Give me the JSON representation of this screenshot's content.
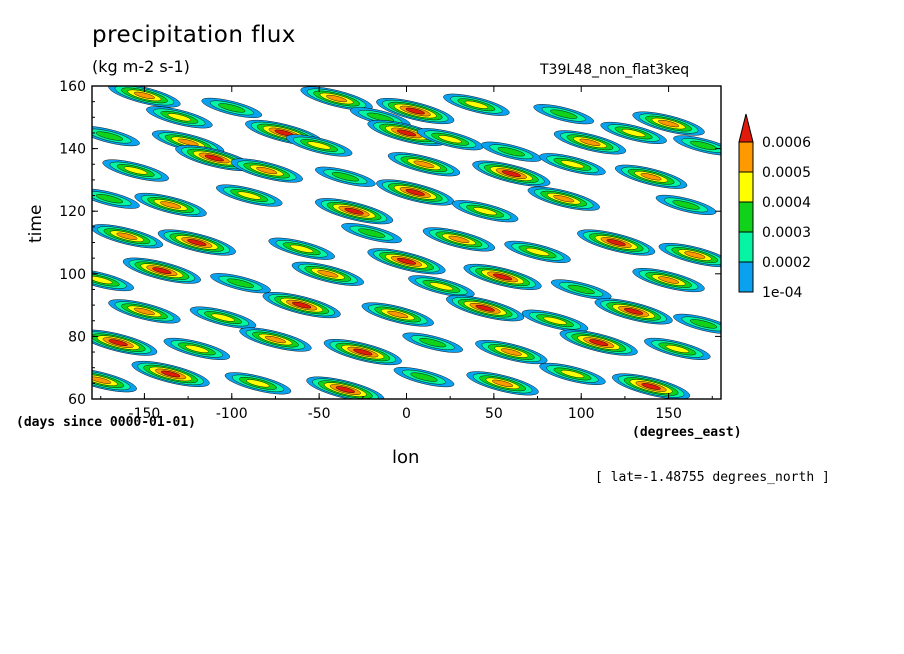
{
  "chart_data": {
    "type": "heatmap",
    "title": "precipitation flux",
    "units": "(kg m-2 s-1)",
    "run_name": "T39L48_non_flat3keq",
    "xlabel": "lon",
    "x_units": "(degrees_east)",
    "ylabel": "time",
    "y_units": "(days since 0000-01-01)",
    "annotation": "[ lat=-1.48755 degrees_north ]",
    "xlim": [
      -180,
      180
    ],
    "ylim": [
      60,
      160
    ],
    "x_ticks": [
      "-150",
      "-100",
      "-50",
      "0",
      "50",
      "100",
      "150"
    ],
    "y_ticks": [
      "60",
      "80",
      "100",
      "120",
      "140",
      "160"
    ],
    "colorbar": {
      "levels": [
        "1e-04",
        "0.0002",
        "0.0003",
        "0.0004",
        "0.0005",
        "0.0006"
      ],
      "colors": [
        "#0aa2ee",
        "#05f5a4",
        "#10d21b",
        "#ffff00",
        "#ff9900",
        "#e11b0b"
      ]
    },
    "blobs": [
      {
        "lon": -150,
        "time": 157,
        "level": 5
      },
      {
        "lon": -130,
        "time": 150,
        "level": 4
      },
      {
        "lon": -100,
        "time": 153,
        "level": 3
      },
      {
        "lon": -40,
        "time": 156,
        "level": 5
      },
      {
        "lon": -15,
        "time": 150,
        "level": 3
      },
      {
        "lon": 5,
        "time": 152,
        "level": 6
      },
      {
        "lon": 40,
        "time": 154,
        "level": 4
      },
      {
        "lon": 90,
        "time": 151,
        "level": 3
      },
      {
        "lon": 150,
        "time": 148,
        "level": 5
      },
      {
        "lon": -170,
        "time": 144,
        "level": 3
      },
      {
        "lon": -125,
        "time": 142,
        "level": 5
      },
      {
        "lon": -70,
        "time": 145,
        "level": 6
      },
      {
        "lon": -50,
        "time": 141,
        "level": 4
      },
      {
        "lon": 0,
        "time": 145,
        "level": 6
      },
      {
        "lon": 25,
        "time": 143,
        "level": 4
      },
      {
        "lon": 60,
        "time": 139,
        "level": 3
      },
      {
        "lon": 105,
        "time": 142,
        "level": 5
      },
      {
        "lon": 130,
        "time": 145,
        "level": 4
      },
      {
        "lon": 170,
        "time": 141,
        "level": 3
      },
      {
        "lon": -155,
        "time": 133,
        "level": 4
      },
      {
        "lon": -110,
        "time": 137,
        "level": 6
      },
      {
        "lon": -80,
        "time": 133,
        "level": 5
      },
      {
        "lon": -35,
        "time": 131,
        "level": 3
      },
      {
        "lon": 10,
        "time": 135,
        "level": 5
      },
      {
        "lon": 60,
        "time": 132,
        "level": 6
      },
      {
        "lon": 95,
        "time": 135,
        "level": 4
      },
      {
        "lon": 140,
        "time": 131,
        "level": 5
      },
      {
        "lon": -170,
        "time": 124,
        "level": 3
      },
      {
        "lon": -135,
        "time": 122,
        "level": 5
      },
      {
        "lon": -90,
        "time": 125,
        "level": 4
      },
      {
        "lon": -30,
        "time": 120,
        "level": 6
      },
      {
        "lon": 5,
        "time": 126,
        "level": 6
      },
      {
        "lon": 45,
        "time": 120,
        "level": 4
      },
      {
        "lon": 90,
        "time": 124,
        "level": 5
      },
      {
        "lon": 160,
        "time": 122,
        "level": 3
      },
      {
        "lon": -160,
        "time": 112,
        "level": 5
      },
      {
        "lon": -120,
        "time": 110,
        "level": 6
      },
      {
        "lon": -60,
        "time": 108,
        "level": 4
      },
      {
        "lon": -20,
        "time": 113,
        "level": 3
      },
      {
        "lon": 0,
        "time": 104,
        "level": 6
      },
      {
        "lon": 30,
        "time": 111,
        "level": 5
      },
      {
        "lon": 75,
        "time": 107,
        "level": 4
      },
      {
        "lon": 120,
        "time": 110,
        "level": 6
      },
      {
        "lon": 165,
        "time": 106,
        "level": 5
      },
      {
        "lon": -175,
        "time": 98,
        "level": 4
      },
      {
        "lon": -140,
        "time": 101,
        "level": 6
      },
      {
        "lon": -95,
        "time": 97,
        "level": 3
      },
      {
        "lon": -45,
        "time": 100,
        "level": 5
      },
      {
        "lon": 20,
        "time": 96,
        "level": 4
      },
      {
        "lon": 55,
        "time": 99,
        "level": 6
      },
      {
        "lon": 100,
        "time": 95,
        "level": 3
      },
      {
        "lon": 150,
        "time": 98,
        "level": 5
      },
      {
        "lon": -150,
        "time": 88,
        "level": 5
      },
      {
        "lon": -105,
        "time": 86,
        "level": 4
      },
      {
        "lon": -60,
        "time": 90,
        "level": 6
      },
      {
        "lon": -5,
        "time": 87,
        "level": 5
      },
      {
        "lon": 45,
        "time": 89,
        "level": 6
      },
      {
        "lon": 85,
        "time": 85,
        "level": 4
      },
      {
        "lon": 130,
        "time": 88,
        "level": 6
      },
      {
        "lon": 170,
        "time": 84,
        "level": 3
      },
      {
        "lon": -165,
        "time": 78,
        "level": 6
      },
      {
        "lon": -120,
        "time": 76,
        "level": 4
      },
      {
        "lon": -75,
        "time": 79,
        "level": 5
      },
      {
        "lon": -25,
        "time": 75,
        "level": 6
      },
      {
        "lon": 15,
        "time": 78,
        "level": 3
      },
      {
        "lon": 60,
        "time": 75,
        "level": 5
      },
      {
        "lon": 110,
        "time": 78,
        "level": 6
      },
      {
        "lon": 155,
        "time": 76,
        "level": 4
      },
      {
        "lon": -175,
        "time": 66,
        "level": 5
      },
      {
        "lon": -135,
        "time": 68,
        "level": 6
      },
      {
        "lon": -85,
        "time": 65,
        "level": 4
      },
      {
        "lon": -35,
        "time": 63,
        "level": 6
      },
      {
        "lon": 10,
        "time": 67,
        "level": 3
      },
      {
        "lon": 55,
        "time": 65,
        "level": 5
      },
      {
        "lon": 95,
        "time": 68,
        "level": 4
      },
      {
        "lon": 140,
        "time": 64,
        "level": 6
      }
    ]
  }
}
